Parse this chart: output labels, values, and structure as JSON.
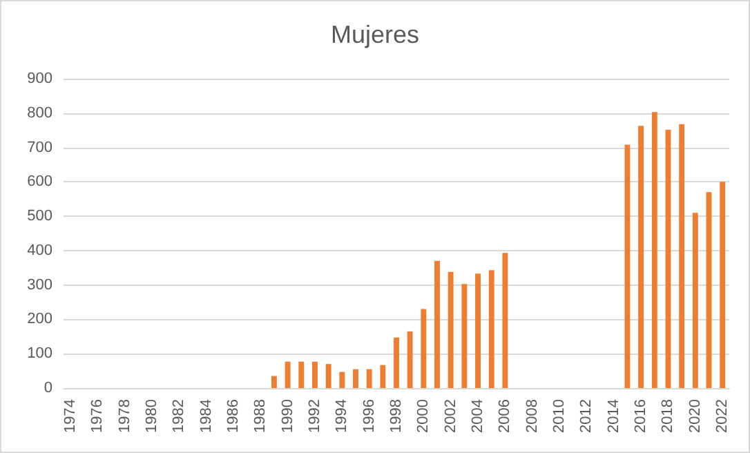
{
  "chart_data": {
    "type": "bar",
    "title": "Mujeres",
    "categories": [
      "1974",
      null,
      "1976",
      null,
      "1978",
      null,
      "1980",
      null,
      "1982",
      null,
      "1984",
      null,
      "1986",
      null,
      "1988",
      null,
      "1990",
      null,
      "1992",
      null,
      "1994",
      null,
      "1996",
      null,
      "1998",
      null,
      "2000",
      null,
      "2002",
      null,
      "2004",
      null,
      "2006",
      null,
      "2008",
      null,
      "2010",
      null,
      "2012",
      null,
      "2014",
      null,
      "2016",
      null,
      "2018",
      null,
      "2020",
      null,
      "2022"
    ],
    "values": [
      null,
      null,
      null,
      null,
      null,
      null,
      null,
      null,
      null,
      null,
      null,
      null,
      null,
      null,
      null,
      35,
      77,
      77,
      77,
      70,
      47,
      55,
      55,
      67,
      147,
      165,
      230,
      370,
      338,
      303,
      333,
      343,
      393,
      null,
      null,
      null,
      null,
      null,
      null,
      null,
      null,
      708,
      763,
      803,
      752,
      768,
      510,
      570,
      600
    ],
    "color": "#ed7d31",
    "ylim": [
      0,
      900
    ],
    "yticks": [
      0,
      100,
      200,
      300,
      400,
      500,
      600,
      700,
      800,
      900
    ],
    "grid": "y"
  }
}
